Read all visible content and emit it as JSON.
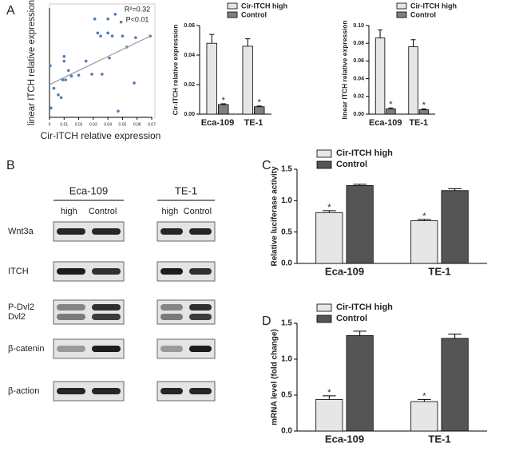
{
  "chart_data": [
    {
      "type": "scatter",
      "panel_label": "A",
      "x_label": "Cir-ITCH relative expression",
      "y_label": "linear ITCH relative expression",
      "annotations": [
        "R²=0.32",
        "P<0.01"
      ],
      "color": "#4a7ebb",
      "xlim": [
        0,
        0.07
      ],
      "xticks": [
        0,
        0.01,
        0.02,
        0.03,
        0.04,
        0.05,
        0.06,
        0.07
      ],
      "ylim": [
        0,
        0.35
      ],
      "x": [
        0.0005,
        0.001,
        0.003,
        0.006,
        0.008,
        0.009,
        0.01,
        0.01,
        0.011,
        0.013,
        0.015,
        0.02,
        0.025,
        0.029,
        0.031,
        0.033,
        0.035,
        0.036,
        0.04,
        0.04,
        0.041,
        0.043,
        0.045,
        0.047,
        0.049,
        0.05,
        0.053,
        0.058,
        0.059,
        0.069
      ],
      "y": [
        0.165,
        0.03,
        0.093,
        0.072,
        0.063,
        0.12,
        0.195,
        0.18,
        0.12,
        0.15,
        0.132,
        0.135,
        0.18,
        0.138,
        0.315,
        0.27,
        0.26,
        0.138,
        0.315,
        0.27,
        0.19,
        0.26,
        0.33,
        0.02,
        0.305,
        0.26,
        0.225,
        0.11,
        0.255,
        0.26
      ],
      "trendline": {
        "color": "#999999",
        "x": [
          0,
          0.069
        ],
        "y": [
          0.105,
          0.26
        ]
      }
    },
    {
      "type": "bar",
      "y_label": "Cir-ITCH relative expression",
      "categories": [
        "Eca-109",
        "TE-1"
      ],
      "legend": "top",
      "ylim": [
        0,
        0.06
      ],
      "yticks": [
        {
          "value": 0,
          "label": "0.00"
        },
        {
          "value": 0.02,
          "label": "0.02"
        },
        {
          "value": 0.04,
          "label": "0.04"
        },
        {
          "value": 0.06,
          "label": "0.06"
        }
      ],
      "series": [
        {
          "name": "Cir-ITCH high",
          "color": "#e6e6e6",
          "values": [
            0.048,
            0.046
          ],
          "errors": [
            0.006,
            0.005
          ]
        },
        {
          "name": "Control",
          "color": "#7f7f7f",
          "values": [
            0.0065,
            0.005
          ],
          "errors": [
            0.0005,
            0.0005
          ],
          "significance": [
            "*",
            "*"
          ]
        }
      ]
    },
    {
      "type": "bar",
      "y_label": "linear ITCH relative expression",
      "categories": [
        "Eca-109",
        "TE-1"
      ],
      "legend": "top",
      "ylim": [
        0,
        0.1
      ],
      "yticks": [
        {
          "value": 0,
          "label": "0.00"
        },
        {
          "value": 0.02,
          "label": "0.02"
        },
        {
          "value": 0.04,
          "label": "0.04"
        },
        {
          "value": 0.06,
          "label": "0.06"
        },
        {
          "value": 0.08,
          "label": "0.08"
        },
        {
          "value": 0.1,
          "label": "0.10"
        }
      ],
      "series": [
        {
          "name": "Cir-ITCH high",
          "color": "#e6e6e6",
          "values": [
            0.086,
            0.076
          ],
          "errors": [
            0.009,
            0.008
          ]
        },
        {
          "name": "Control",
          "color": "#7f7f7f",
          "values": [
            0.006,
            0.005
          ],
          "errors": [
            0.001,
            0.001
          ],
          "significance": [
            "*",
            "*"
          ]
        }
      ]
    },
    {
      "type": "bar",
      "panel_label": "C",
      "y_label": "Relative luciferase activity",
      "categories": [
        "Eca-109",
        "TE-1"
      ],
      "legend": "top",
      "ylim": [
        0,
        1.5
      ],
      "yticks": [
        {
          "value": 0,
          "label": "0.0"
        },
        0.5,
        {
          "value": 1,
          "label": "1.0"
        },
        1.5
      ],
      "series": [
        {
          "name": "Cir-ITCH high",
          "color": "#e6e6e6",
          "values": [
            0.81,
            0.68
          ],
          "errors": [
            0.03,
            0.02
          ],
          "significance": [
            "*",
            "*"
          ]
        },
        {
          "name": "Control",
          "color": "#555555",
          "values": [
            1.24,
            1.16
          ],
          "errors": [
            0.02,
            0.03
          ]
        }
      ]
    },
    {
      "type": "bar",
      "panel_label": "D",
      "y_label": "mRNA level (fold change)",
      "categories": [
        "Eca-109",
        "TE-1"
      ],
      "legend": "top",
      "ylim": [
        0,
        1.5
      ],
      "yticks": [
        {
          "value": 0,
          "label": "0.0"
        },
        0.5,
        {
          "value": 1,
          "label": "1.0"
        },
        1.5
      ],
      "series": [
        {
          "name": "Cir-ITCH high",
          "color": "#e6e6e6",
          "values": [
            0.44,
            0.41
          ],
          "errors": [
            0.05,
            0.03
          ],
          "significance": [
            "*",
            "*"
          ]
        },
        {
          "name": "Control",
          "color": "#555555",
          "values": [
            1.33,
            1.29
          ],
          "errors": [
            0.06,
            0.06
          ]
        }
      ]
    }
  ],
  "blot": {
    "panel_label": "B",
    "groups": [
      {
        "name": "Eca-109",
        "lanes": [
          "high",
          "Control"
        ]
      },
      {
        "name": "TE-1",
        "lanes": [
          "high",
          "Control"
        ]
      }
    ],
    "rows": [
      "Wnt3a",
      "ITCH",
      "P-Dvl2",
      "Dvl2",
      "β-catenin",
      "β-action"
    ]
  }
}
